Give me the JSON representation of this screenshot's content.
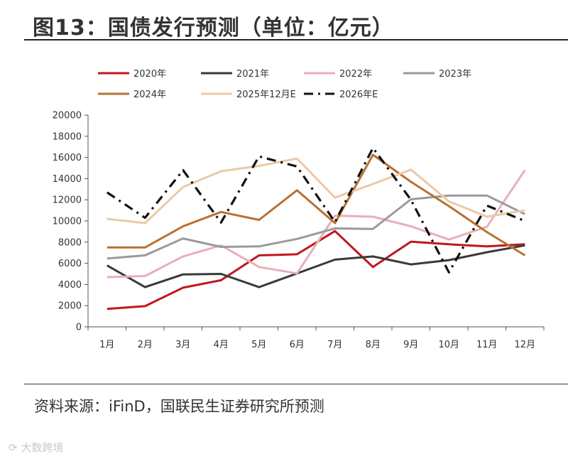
{
  "header": {
    "title": "图13：国债发行预测（单位：亿元）"
  },
  "footer": {
    "source": "资料来源：iFinD，国联民生证券研究所预测",
    "watermark": "大数跨境"
  },
  "chart_data": {
    "type": "line",
    "title": "图13：国债发行预测（单位：亿元）",
    "xlabel": "",
    "ylabel": "",
    "categories": [
      "1月",
      "2月",
      "3月",
      "4月",
      "5月",
      "6月",
      "7月",
      "8月",
      "9月",
      "10月",
      "11月",
      "12月"
    ],
    "ylim": [
      0,
      20000
    ],
    "yticks": [
      0,
      2000,
      4000,
      6000,
      8000,
      10000,
      12000,
      14000,
      16000,
      18000,
      20000
    ],
    "grid": false,
    "legend_position": "top",
    "series": [
      {
        "name": "2020年",
        "color": "#c0171e",
        "dash": "solid",
        "values": [
          1700,
          1950,
          3700,
          4400,
          6750,
          6850,
          9050,
          5650,
          8050,
          7800,
          7600,
          7800
        ]
      },
      {
        "name": "2021年",
        "color": "#3a3a3a",
        "dash": "solid",
        "values": [
          5800,
          3750,
          4950,
          5000,
          3750,
          5050,
          6350,
          6650,
          5900,
          6300,
          7050,
          7700
        ]
      },
      {
        "name": "2022年",
        "color": "#e8b0b6",
        "dash": "solid",
        "values": [
          4700,
          4800,
          6650,
          7700,
          5650,
          5050,
          10500,
          10400,
          9500,
          8250,
          9450,
          14800
        ]
      },
      {
        "name": "2023年",
        "color": "#9a9a9e",
        "dash": "solid",
        "values": [
          6450,
          6750,
          8350,
          7550,
          7600,
          8300,
          9300,
          9250,
          12050,
          12400,
          12400,
          10650
        ]
      },
      {
        "name": "2024年",
        "color": "#b87033",
        "dash": "solid",
        "values": [
          7500,
          7500,
          9500,
          10850,
          10100,
          12900,
          9800,
          16250,
          13700,
          11400,
          8950,
          6750
        ]
      },
      {
        "name": "2025年12月E",
        "color": "#ecc9a8",
        "dash": "solid",
        "values": [
          10200,
          9800,
          13200,
          14700,
          15200,
          15900,
          12200,
          13500,
          14850,
          11850,
          10400,
          11000
        ]
      },
      {
        "name": "2026年E",
        "color": "#111111",
        "dash": "dashdot",
        "values": [
          12700,
          10300,
          14800,
          9850,
          16100,
          15150,
          9900,
          16900,
          12000,
          5150,
          11450,
          10000
        ]
      }
    ]
  }
}
